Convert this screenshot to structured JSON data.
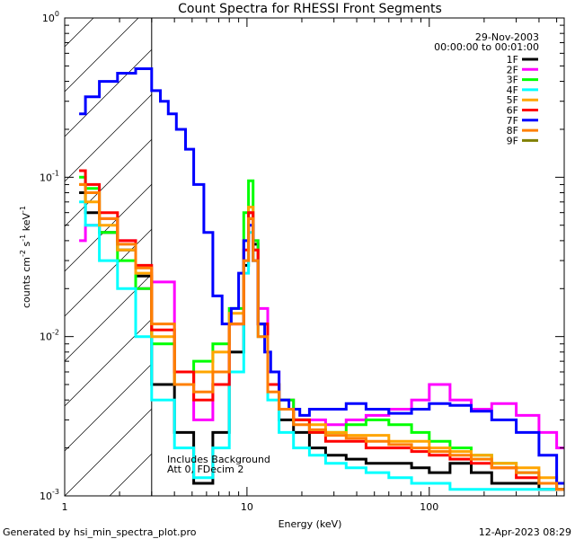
{
  "chart_data": {
    "type": "line",
    "title": "Count Spectra for RHESSI Front Segments",
    "xlabel": "Energy (keV)",
    "ylabel": "counts cm⁻² s⁻¹ keV⁻¹",
    "ylabel_parts": {
      "base": "counts cm",
      "e1": "-2",
      "mid1": " s",
      "e2": "-1",
      "mid2": " keV",
      "e3": "-1"
    },
    "xscale": "log",
    "yscale": "log",
    "xlim": [
      1,
      550
    ],
    "ylim": [
      0.001,
      1
    ],
    "x_ticks": [
      {
        "v": 1,
        "label": "1"
      },
      {
        "v": 10,
        "label": "10"
      },
      {
        "v": 100,
        "label": "100"
      }
    ],
    "y_ticks": [
      {
        "v": 1,
        "base": "10",
        "exp": "0"
      },
      {
        "v": 0.1,
        "base": "10",
        "exp": "-1"
      },
      {
        "v": 0.01,
        "base": "10",
        "exp": "-2"
      },
      {
        "v": 0.001,
        "base": "10",
        "exp": "-3"
      }
    ],
    "date": "29-Nov-2003",
    "time_range": "00:00:00 to 00:01:00",
    "shaded_region_upper_keV": 3,
    "annotation_lines": [
      "Includes Background",
      "Att 0, FDecim 2"
    ],
    "series": [
      {
        "name": "1F",
        "color": "#000000",
        "energy": [
          1.2,
          1.3,
          1.55,
          1.95,
          2.45,
          3.0,
          4.0,
          5.1,
          6.5,
          8.0,
          9.6,
          10.2,
          10.8,
          11.5,
          13.0,
          15.0,
          18.0,
          22.0,
          27.0,
          35.0,
          45.0,
          60.0,
          80.0,
          100.0,
          130.0,
          170.0,
          220.0,
          300.0,
          400.0,
          500.0
        ],
        "values": [
          0.08,
          0.06,
          0.045,
          0.035,
          0.024,
          0.005,
          0.0025,
          0.0012,
          0.0025,
          0.008,
          0.028,
          0.055,
          0.038,
          0.012,
          0.005,
          0.003,
          0.0025,
          0.002,
          0.0018,
          0.0017,
          0.0016,
          0.0016,
          0.0015,
          0.0014,
          0.0016,
          0.0014,
          0.0012,
          0.0012,
          0.0011,
          0.0011
        ]
      },
      {
        "name": "2F",
        "color": "#ff00ff",
        "energy": [
          1.2,
          1.3,
          1.55,
          1.95,
          2.45,
          3.0,
          4.0,
          5.1,
          6.5,
          8.0,
          9.6,
          10.2,
          10.8,
          11.5,
          13.0,
          15.0,
          18.0,
          22.0,
          27.0,
          35.0,
          45.0,
          60.0,
          80.0,
          100.0,
          130.0,
          170.0,
          220.0,
          300.0,
          400.0,
          500.0
        ],
        "values": [
          0.04,
          0.05,
          0.055,
          0.04,
          0.02,
          0.022,
          0.006,
          0.003,
          0.005,
          0.012,
          0.03,
          0.06,
          0.04,
          0.015,
          0.006,
          0.004,
          0.003,
          0.003,
          0.0028,
          0.003,
          0.0032,
          0.0035,
          0.004,
          0.005,
          0.004,
          0.0035,
          0.0038,
          0.0032,
          0.0025,
          0.002
        ]
      },
      {
        "name": "3F",
        "color": "#00ff00",
        "energy": [
          1.2,
          1.3,
          1.55,
          1.95,
          2.45,
          3.0,
          4.0,
          5.1,
          6.5,
          8.0,
          9.6,
          10.2,
          10.8,
          11.5,
          13.0,
          15.0,
          18.0,
          22.0,
          27.0,
          35.0,
          45.0,
          60.0,
          80.0,
          100.0,
          130.0,
          170.0,
          220.0,
          300.0,
          400.0,
          500.0
        ],
        "values": [
          0.1,
          0.085,
          0.045,
          0.03,
          0.02,
          0.009,
          0.005,
          0.007,
          0.009,
          0.015,
          0.06,
          0.095,
          0.04,
          0.012,
          0.005,
          0.004,
          0.003,
          0.0025,
          0.0025,
          0.0028,
          0.003,
          0.0028,
          0.0025,
          0.0022,
          0.002,
          0.0018,
          0.0016,
          0.0014,
          0.0012,
          0.0011
        ]
      },
      {
        "name": "4F",
        "color": "#00ffff",
        "energy": [
          1.2,
          1.3,
          1.55,
          1.95,
          2.45,
          3.0,
          4.0,
          5.1,
          6.5,
          8.0,
          9.6,
          10.2,
          10.8,
          11.5,
          13.0,
          15.0,
          18.0,
          22.0,
          27.0,
          35.0,
          45.0,
          60.0,
          80.0,
          100.0,
          130.0,
          170.0,
          220.0,
          300.0,
          400.0,
          500.0
        ],
        "values": [
          0.07,
          0.05,
          0.03,
          0.02,
          0.01,
          0.004,
          0.002,
          0.0013,
          0.002,
          0.006,
          0.025,
          0.045,
          0.03,
          0.01,
          0.004,
          0.0025,
          0.002,
          0.0018,
          0.0016,
          0.0015,
          0.0014,
          0.0013,
          0.0012,
          0.0012,
          0.0011,
          0.0011,
          0.0011,
          0.0011,
          0.0011,
          0.0011
        ]
      },
      {
        "name": "5F",
        "color": "#ffa500",
        "energy": [
          1.2,
          1.3,
          1.55,
          1.95,
          2.45,
          3.0,
          4.0,
          5.1,
          6.5,
          8.0,
          9.6,
          10.2,
          10.8,
          11.5,
          13.0,
          15.0,
          18.0,
          22.0,
          27.0,
          35.0,
          45.0,
          60.0,
          80.0,
          100.0,
          130.0,
          170.0,
          220.0,
          300.0,
          400.0,
          500.0
        ],
        "values": [
          0.09,
          0.07,
          0.05,
          0.035,
          0.025,
          0.01,
          0.005,
          0.006,
          0.008,
          0.014,
          0.04,
          0.065,
          0.035,
          0.012,
          0.005,
          0.0035,
          0.003,
          0.0028,
          0.0025,
          0.0024,
          0.0024,
          0.0022,
          0.0022,
          0.002,
          0.0019,
          0.0018,
          0.0016,
          0.0015,
          0.0013,
          0.0012
        ]
      },
      {
        "name": "6F",
        "color": "#ff0000",
        "energy": [
          1.2,
          1.3,
          1.55,
          1.95,
          2.45,
          3.0,
          4.0,
          5.1,
          6.5,
          8.0,
          9.6,
          10.2,
          10.8,
          11.5,
          13.0,
          15.0,
          18.0,
          22.0,
          27.0,
          35.0,
          45.0,
          60.0,
          80.0,
          100.0,
          130.0,
          170.0,
          220.0,
          300.0,
          400.0,
          500.0
        ],
        "values": [
          0.11,
          0.09,
          0.06,
          0.04,
          0.028,
          0.011,
          0.006,
          0.004,
          0.005,
          0.012,
          0.035,
          0.06,
          0.035,
          0.012,
          0.005,
          0.0035,
          0.003,
          0.0025,
          0.0022,
          0.0022,
          0.002,
          0.002,
          0.0019,
          0.0018,
          0.0017,
          0.0016,
          0.0015,
          0.0013,
          0.0012,
          0.0011
        ]
      },
      {
        "name": "7F",
        "color": "#0000ff",
        "energy": [
          1.2,
          1.3,
          1.55,
          1.95,
          2.45,
          3.0,
          3.35,
          3.7,
          4.1,
          4.6,
          5.1,
          5.8,
          6.5,
          7.3,
          8.2,
          9.0,
          9.6,
          10.2,
          10.8,
          11.5,
          12.5,
          13.5,
          15.0,
          17.0,
          19.5,
          22.0,
          27.0,
          35.0,
          45.0,
          60.0,
          80.0,
          100.0,
          130.0,
          170.0,
          220.0,
          300.0,
          400.0,
          500.0
        ],
        "values": [
          0.25,
          0.32,
          0.4,
          0.45,
          0.48,
          0.35,
          0.3,
          0.25,
          0.2,
          0.15,
          0.09,
          0.045,
          0.018,
          0.012,
          0.015,
          0.025,
          0.04,
          0.05,
          0.03,
          0.012,
          0.008,
          0.006,
          0.004,
          0.0035,
          0.0032,
          0.0035,
          0.0035,
          0.0038,
          0.0035,
          0.0033,
          0.0035,
          0.0038,
          0.0037,
          0.0034,
          0.003,
          0.0025,
          0.0018,
          0.0012
        ]
      },
      {
        "name": "8F",
        "color": "#ff7f00",
        "energy": [
          1.2,
          1.3,
          1.55,
          1.95,
          2.45,
          3.0,
          4.0,
          5.1,
          6.5,
          8.0,
          9.6,
          10.2,
          10.8,
          11.5,
          13.0,
          15.0,
          18.0,
          22.0,
          27.0,
          35.0,
          45.0,
          60.0,
          80.0,
          100.0,
          130.0,
          170.0,
          220.0,
          300.0,
          400.0,
          500.0
        ],
        "values": [
          0.09,
          0.08,
          0.055,
          0.038,
          0.027,
          0.012,
          0.005,
          0.0045,
          0.006,
          0.012,
          0.03,
          0.055,
          0.03,
          0.01,
          0.0045,
          0.0035,
          0.0028,
          0.0026,
          0.0024,
          0.0023,
          0.0022,
          0.0021,
          0.002,
          0.0019,
          0.0018,
          0.0017,
          0.0015,
          0.0014,
          0.0012,
          0.0011
        ]
      },
      {
        "name": "9F",
        "color": "#808000",
        "energy": [],
        "values": []
      }
    ]
  },
  "footer": {
    "generated_by": "Generated by hsi_min_spectra_plot.pro",
    "timestamp": "12-Apr-2023 08:29"
  }
}
